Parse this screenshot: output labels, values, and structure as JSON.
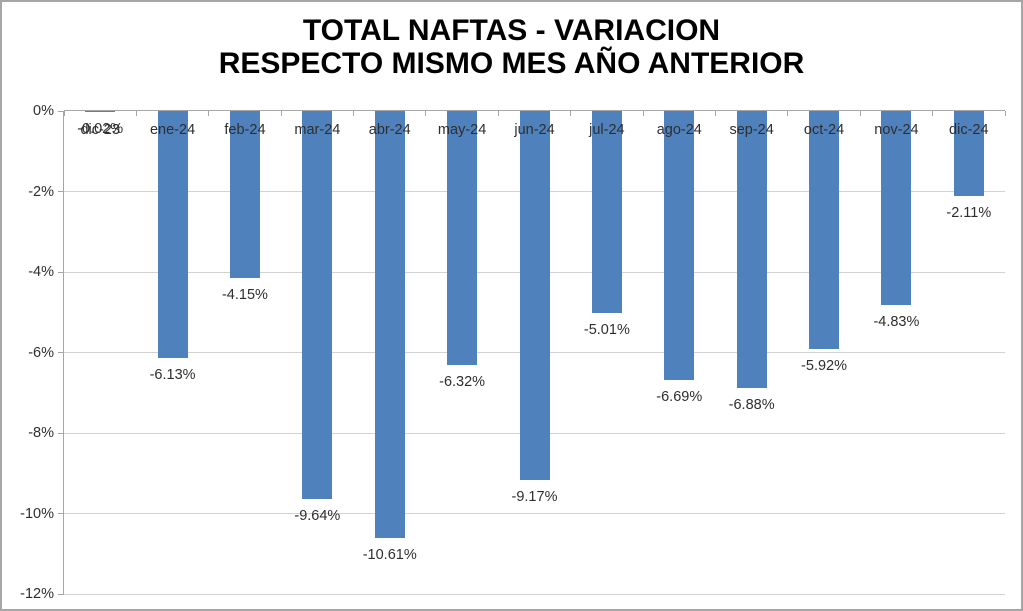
{
  "chart_data": {
    "type": "bar",
    "title": "TOTAL NAFTAS - VARIACION RESPECTO MISMO MES AÑO ANTERIOR",
    "title_lines": [
      "TOTAL NAFTAS - VARIACION",
      "RESPECTO MISMO MES AÑO ANTERIOR"
    ],
    "categories": [
      "dic-23",
      "ene-24",
      "feb-24",
      "mar-24",
      "abr-24",
      "may-24",
      "jun-24",
      "jul-24",
      "ago-24",
      "sep-24",
      "oct-24",
      "nov-24",
      "dic-24"
    ],
    "values": [
      -0.02,
      -6.13,
      -4.15,
      -9.64,
      -10.61,
      -6.32,
      -9.17,
      -5.01,
      -6.69,
      -6.88,
      -5.92,
      -4.83,
      -2.11
    ],
    "data_labels": [
      "-0.02%",
      "-6.13%",
      "-4.15%",
      "-9.64%",
      "-10.61%",
      "-6.32%",
      "-9.17%",
      "-5.01%",
      "-6.69%",
      "-6.88%",
      "-5.92%",
      "-4.83%",
      "-2.11%"
    ],
    "xlabel": "",
    "ylabel": "",
    "ylim": [
      -12,
      0
    ],
    "ytick_values": [
      0,
      -2,
      -4,
      -6,
      -8,
      -10,
      -12
    ],
    "ytick_labels": [
      "0%",
      "-2%",
      "-4%",
      "-6%",
      "-8%",
      "-10%",
      "-12%"
    ],
    "grid": true,
    "legend": false
  },
  "colors": {
    "bar": "#4F81BD",
    "gridline": "#D2D2D2",
    "axis": "#A6A6A6",
    "label_text": "#2E2E2E",
    "title_text": "#000000",
    "frame_border": "#A6A6A6",
    "background": "#FFFFFF"
  }
}
